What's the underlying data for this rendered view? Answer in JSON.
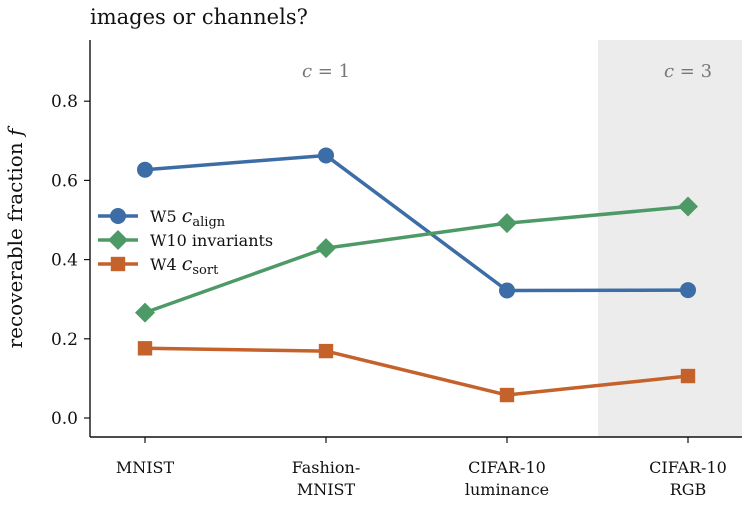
{
  "chart_data": {
    "type": "line",
    "title": "images or channels?",
    "ylabel": "recoverable fraction f",
    "xlabel": "",
    "ylim": [
      -0.05,
      0.95
    ],
    "yticks": [
      "0.0",
      "0.2",
      "0.4",
      "0.6",
      "0.8"
    ],
    "categories": [
      [
        "MNIST"
      ],
      [
        "Fashion-",
        "MNIST"
      ],
      [
        "CIFAR-10",
        "luminance"
      ],
      [
        "CIFAR-10",
        "RGB"
      ]
    ],
    "annotations": [
      {
        "text": "c = 1",
        "at_category": 1
      },
      {
        "text": "c = 3",
        "at_category": 3
      }
    ],
    "shaded_region": {
      "from_category": 2.5,
      "to_category": 3.3,
      "color": "#ececec"
    },
    "series": [
      {
        "name": "W5  c_align",
        "label_main": "W5  ",
        "label_italic": "c",
        "label_sub": "align",
        "marker": "circle",
        "color": "#3d6da6",
        "values": [
          0.627,
          0.663,
          0.322,
          0.323
        ]
      },
      {
        "name": "W10  invariants",
        "label_main": "W10  invariants",
        "label_italic": "",
        "label_sub": "",
        "marker": "diamond",
        "color": "#4e9a67",
        "values": [
          0.266,
          0.429,
          0.492,
          0.534
        ]
      },
      {
        "name": "W4  c_sort",
        "label_main": "W4  ",
        "label_italic": "c",
        "label_sub": "sort",
        "marker": "square",
        "color": "#c5612a",
        "values": [
          0.176,
          0.169,
          0.058,
          0.106
        ]
      }
    ],
    "legend_position": "center-left",
    "grid": false
  }
}
